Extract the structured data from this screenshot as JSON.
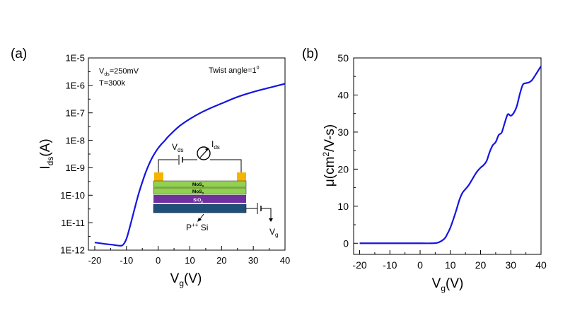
{
  "chart_data": [
    {
      "type": "line",
      "panel_label": "(a)",
      "xlabel": "V",
      "xlabel_sub": "g",
      "xlabel_unit": "(V)",
      "ylabel": "I",
      "ylabel_sub": "ds",
      "ylabel_unit": "(A)",
      "xlim": [
        -22,
        40
      ],
      "ylim": [
        1e-12,
        1e-05
      ],
      "yscale": "log",
      "xticks": [
        -20,
        -10,
        0,
        10,
        20,
        30,
        40
      ],
      "yticks": [
        1e-12,
        1e-11,
        1e-10,
        1e-09,
        1e-08,
        1e-07,
        1e-06,
        1e-05
      ],
      "ytick_labels": [
        "1E-12",
        "1E-11",
        "1E-10",
        "1E-9",
        "1E-8",
        "1E-7",
        "1E-6",
        "1E-5"
      ],
      "grid": false,
      "line_color": "#1515e0",
      "annotations": {
        "vds_main": "V",
        "vds_sub": "ds",
        "vds_value": "=250mV",
        "temperature": "T=300k",
        "twist": "Twist angle=1",
        "twist_sup": "0"
      },
      "inset": {
        "vds_label": "V",
        "vds_sub": "ds",
        "ids_label": "I",
        "ids_sub": "ds",
        "layer1": "MoS",
        "layer1_sub": "2",
        "layer2": "MoS",
        "layer2_sub": "2",
        "layer3": "SiO",
        "layer3_sub": "2",
        "substrate": "P",
        "substrate_sup": "++",
        "substrate_suffix": " Si",
        "vg_label": "V",
        "vg_sub": "g",
        "colors": {
          "contact": "#f5b400",
          "mos2": "#92d050",
          "sio2": "#7030a0",
          "si": "#1f4e79"
        }
      },
      "series": [
        {
          "x": [
            -20,
            -17,
            -14,
            -12,
            -11,
            -10,
            -9,
            -8,
            -7,
            -6,
            -5,
            -4,
            -3,
            -2,
            -1,
            0,
            1,
            2,
            3,
            4,
            5,
            7,
            10,
            13,
            16,
            20,
            25,
            30,
            35,
            40
          ],
          "y": [
            1.9e-12,
            1.7e-12,
            1.55e-12,
            1.45e-12,
            1.6e-12,
            2.6e-12,
            6.5e-12,
            1.8e-11,
            5e-11,
            1.3e-10,
            3e-10,
            6.5e-10,
            1.25e-09,
            2.2e-09,
            3.5e-09,
            5.2e-09,
            7.2e-09,
            9.5e-09,
            1.3e-08,
            1.7e-08,
            2.2e-08,
            3.5e-08,
            6e-08,
            9.5e-08,
            1.4e-07,
            2.2e-07,
            3.8e-07,
            5.8e-07,
            8.2e-07,
            1.15e-06
          ]
        }
      ]
    },
    {
      "type": "line",
      "panel_label": "(b)",
      "xlabel": "V",
      "xlabel_sub": "g",
      "xlabel_unit": "(V)",
      "ylabel_prefix": "μ(cm",
      "ylabel_sup": "2",
      "ylabel_suffix": "/V-s)",
      "xlim": [
        -22,
        40
      ],
      "ylim": [
        -3,
        50
      ],
      "xticks": [
        -20,
        -10,
        0,
        10,
        20,
        30,
        40
      ],
      "yticks": [
        0,
        10,
        20,
        30,
        40,
        50
      ],
      "grid": false,
      "line_color": "#1515e0",
      "series": [
        {
          "x": [
            -20,
            -10,
            0,
            4,
            6,
            8,
            9,
            10,
            11,
            12,
            13,
            14,
            15,
            16,
            17,
            18,
            19,
            20,
            21,
            22,
            23,
            24,
            25,
            26,
            27,
            28,
            29,
            30,
            31,
            32,
            33,
            34,
            35,
            36,
            37,
            38,
            39,
            40
          ],
          "y": [
            0,
            0,
            0,
            0,
            0.2,
            1.2,
            2.5,
            4.2,
            6.5,
            9,
            11.7,
            13.6,
            14.6,
            15.6,
            16.9,
            18.3,
            19.5,
            20.4,
            21.1,
            22.2,
            24.6,
            26.4,
            27.3,
            29.2,
            29.9,
            32.5,
            34.8,
            34.4,
            35.2,
            37,
            40.3,
            42.8,
            43.2,
            43.4,
            44,
            45.2,
            46.5,
            47.8
          ]
        }
      ]
    }
  ]
}
